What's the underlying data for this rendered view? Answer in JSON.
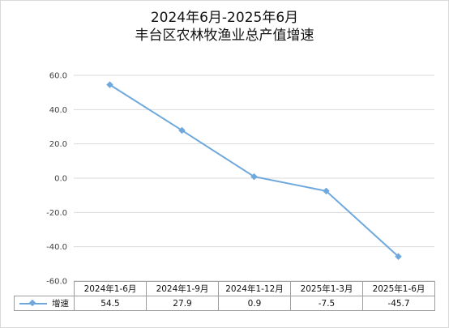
{
  "chart_data": {
    "type": "line",
    "title_line1": "2024年6月-2025年6月",
    "title_line2": "丰台区农林牧渔业总产值增速",
    "categories": [
      "2024年1-6月",
      "2024年1-9月",
      "2024年1-12月",
      "2025年1-3月",
      "2025年1-6月"
    ],
    "series": [
      {
        "name": "增速",
        "values": [
          54.5,
          27.9,
          0.9,
          -7.5,
          -45.7
        ],
        "value_labels": [
          "54.5",
          "27.9",
          "0.9",
          "-7.5",
          "-45.7"
        ]
      }
    ],
    "ylim": [
      -60,
      60
    ],
    "yticks": [
      "60.0",
      "40.0",
      "20.0",
      "0.0",
      "-20.0",
      "-40.0",
      "-60.0"
    ],
    "grid": true,
    "legend": "data-table",
    "colors": {
      "series": "#6fa8dc",
      "grid": "#d9d9d9",
      "axis": "#bfbfbf"
    }
  }
}
